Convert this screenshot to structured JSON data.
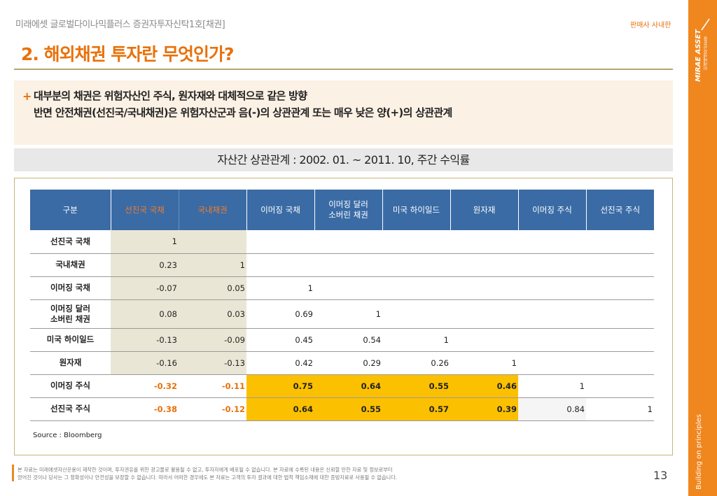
{
  "header": {
    "fund_title": "미래에셋 글로벌다이나믹플러스 증권자투자신탁1호[채권]",
    "distributor_label": "판매사 사내한",
    "page_heading": "2. 해외채권 투자란 무엇인가?"
  },
  "sidebar": {
    "brand_name": "MIRAE ASSET",
    "brand_sub": "미래에셋자산운용",
    "tagline": "Building on principles",
    "color": "#f0861e"
  },
  "summary": {
    "bullet": "+",
    "line1": "대부분의 채권은 위험자산인 주식, 원자재와 대체적으로 같은 방향",
    "line2": "반면 안전채권(선진국/국내채권)은 위험자산군과 음(-)의 상관관계 또는 매우 낮은 양(+)의 상관관계"
  },
  "table_caption": "자산간 상관관계 :  2002. 01. ~ 2011. 10, 주간 수익률",
  "table": {
    "corner_label": "구분",
    "columns": [
      "선진국 국채",
      "국내채권",
      "이머징 국채",
      "이머징 달러\n소버린 채권",
      "미국 하이일드",
      "원자재",
      "이머징 주식",
      "선진국 주식"
    ],
    "rows": [
      {
        "label": "선진국 국채",
        "values": [
          "1",
          "",
          "",
          "",
          "",
          "",
          "",
          ""
        ]
      },
      {
        "label": "국내채권",
        "values": [
          "0.23",
          "1",
          "",
          "",
          "",
          "",
          "",
          ""
        ]
      },
      {
        "label": "이머징 국채",
        "values": [
          "-0.07",
          "0.05",
          "1",
          "",
          "",
          "",
          "",
          ""
        ]
      },
      {
        "label": "이머징 달러\n소버린 채권",
        "values": [
          "0.08",
          "0.03",
          "0.69",
          "1",
          "",
          "",
          "",
          ""
        ]
      },
      {
        "label": "미국 하이일드",
        "values": [
          "-0.13",
          "-0.09",
          "0.45",
          "0.54",
          "1",
          "",
          "",
          ""
        ]
      },
      {
        "label": "원자재",
        "values": [
          "-0.16",
          "-0.13",
          "0.42",
          "0.29",
          "0.26",
          "1",
          "",
          ""
        ]
      },
      {
        "label": "이머징 주식",
        "values": [
          "-0.32",
          "-0.11",
          "0.75",
          "0.64",
          "0.55",
          "0.46",
          "1",
          ""
        ]
      },
      {
        "label": "선진국 주식",
        "values": [
          "-0.38",
          "-0.12",
          "0.64",
          "0.55",
          "0.57",
          "0.39",
          "0.84",
          "1"
        ]
      }
    ],
    "colors": {
      "header_bg": "#3a6ba5",
      "header_highlight_text": "#f47c2a",
      "safe_bond_column_bg": "#e9e6d5",
      "negative_highlight_text": "#e8710a",
      "positive_highlight_bg": "#fbc000"
    }
  },
  "source": "Source : Bloomberg",
  "footer": {
    "disclaimer_line1": "본 자료는 미래에셋자산운용이 제작한 것이며, 투자권유를 위한 광고물로 활용될 수 없고, 투자자에게 배포될 수 없습니다. 본 자료에 수록된 내용은 신뢰할 만한 자료 및 정보로부터",
    "disclaimer_line2": "얻어진 것이나 당사는 그 정확성이나 안전성을 보장할 수 없습니다. 따라서 어떠한 경우에도 본 자료는 고객의 투자 결과에 대한 법적 책임소재에 대한 증빙자료로 사용될 수 없습니다.",
    "page_number": "13"
  }
}
